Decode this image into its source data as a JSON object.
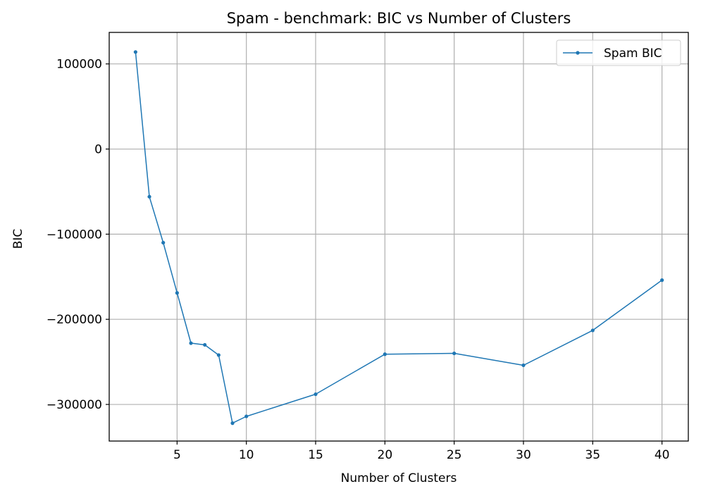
{
  "chart_data": {
    "type": "line",
    "title": "Spam - benchmark: BIC vs Number of Clusters",
    "xlabel": "Number of Clusters",
    "ylabel": "BIC",
    "xlim": [
      0.1,
      41.9
    ],
    "ylim": [
      -343000,
      137000
    ],
    "xticks": [
      5,
      10,
      15,
      20,
      25,
      30,
      35,
      40
    ],
    "xtick_labels": [
      "5",
      "10",
      "15",
      "20",
      "25",
      "30",
      "35",
      "40"
    ],
    "yticks": [
      100000,
      0,
      -100000,
      -200000,
      -300000
    ],
    "ytick_labels": [
      "100000",
      "0",
      "−100000",
      "−200000",
      "−300000"
    ],
    "grid": true,
    "legend_position": "top-right",
    "series": [
      {
        "name": "Spam BIC",
        "color": "#1f77b4",
        "marker": "circle",
        "x": [
          2,
          3,
          4,
          5,
          6,
          7,
          8,
          9,
          10,
          15,
          20,
          25,
          30,
          35,
          40
        ],
        "y": [
          114000,
          -56000,
          -110000,
          -169000,
          -228000,
          -230000,
          -242000,
          -322000,
          -314000,
          -288000,
          -241000,
          -240000,
          -254000,
          -213000,
          -154000
        ]
      }
    ]
  }
}
